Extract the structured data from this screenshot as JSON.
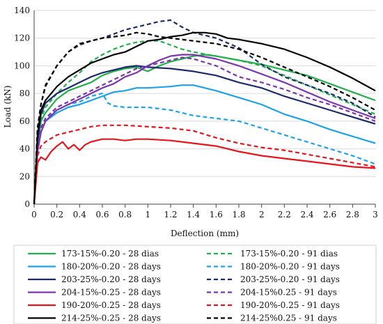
{
  "chart_data": {
    "type": "line",
    "title": "",
    "xlabel": "Deflection (mm)",
    "ylabel": "Load (kN)",
    "xlim": [
      0,
      3
    ],
    "ylim": [
      0,
      140
    ],
    "x_ticks": [
      "0",
      "0.2",
      "0.4",
      "0.6",
      "0.8",
      "1",
      "1.2",
      "1.4",
      "1.6",
      "1.8",
      "2",
      "2.2",
      "2.4",
      "2.6",
      "2.8",
      "3"
    ],
    "y_ticks": [
      "0",
      "20",
      "40",
      "60",
      "80",
      "100",
      "120",
      "140"
    ],
    "grid": "horizontal",
    "legend_position": "bottom",
    "series": [
      {
        "name": "173-15%-0.20 - 28 dias",
        "color": "#22b04b",
        "dash": "solid",
        "points": [
          [
            0,
            0
          ],
          [
            0.03,
            40
          ],
          [
            0.06,
            60
          ],
          [
            0.1,
            66
          ],
          [
            0.2,
            76
          ],
          [
            0.3,
            82
          ],
          [
            0.4,
            85
          ],
          [
            0.5,
            88
          ],
          [
            0.6,
            93
          ],
          [
            0.7,
            96
          ],
          [
            0.8,
            98
          ],
          [
            0.9,
            99
          ],
          [
            1.0,
            96
          ],
          [
            1.1,
            100
          ],
          [
            1.2,
            103
          ],
          [
            1.3,
            105
          ],
          [
            1.4,
            107
          ],
          [
            1.5,
            108
          ],
          [
            1.6,
            107
          ],
          [
            1.8,
            104
          ],
          [
            2.0,
            101
          ],
          [
            2.2,
            97
          ],
          [
            2.4,
            93
          ],
          [
            2.6,
            87
          ],
          [
            2.8,
            81
          ],
          [
            3.0,
            75
          ]
        ]
      },
      {
        "name": "173-15%-0.20 - 91 dias",
        "color": "#22b04b",
        "dash": "dashed",
        "points": [
          [
            0,
            0
          ],
          [
            0.03,
            45
          ],
          [
            0.06,
            62
          ],
          [
            0.1,
            70
          ],
          [
            0.2,
            80
          ],
          [
            0.3,
            88
          ],
          [
            0.4,
            95
          ],
          [
            0.5,
            103
          ],
          [
            0.6,
            108
          ],
          [
            0.7,
            112
          ],
          [
            0.8,
            115
          ],
          [
            0.9,
            117
          ],
          [
            1.0,
            118
          ],
          [
            1.1,
            118
          ],
          [
            1.2,
            115
          ],
          [
            1.3,
            112
          ],
          [
            1.4,
            110
          ],
          [
            1.6,
            107
          ],
          [
            1.8,
            104
          ],
          [
            2.0,
            100
          ],
          [
            2.2,
            93
          ],
          [
            2.4,
            86
          ],
          [
            2.6,
            79
          ],
          [
            2.8,
            72
          ],
          [
            3.0,
            65
          ]
        ]
      },
      {
        "name": "180-20%-0.20 - 28 days",
        "color": "#1aa3e8",
        "dash": "solid",
        "points": [
          [
            0,
            0
          ],
          [
            0.03,
            38
          ],
          [
            0.06,
            52
          ],
          [
            0.1,
            60
          ],
          [
            0.2,
            66
          ],
          [
            0.3,
            70
          ],
          [
            0.4,
            72
          ],
          [
            0.5,
            75
          ],
          [
            0.6,
            78
          ],
          [
            0.7,
            81
          ],
          [
            0.8,
            82
          ],
          [
            0.9,
            84
          ],
          [
            1.0,
            84
          ],
          [
            1.2,
            85
          ],
          [
            1.3,
            86
          ],
          [
            1.4,
            86
          ],
          [
            1.6,
            82
          ],
          [
            1.8,
            77
          ],
          [
            2.0,
            72
          ],
          [
            2.2,
            65
          ],
          [
            2.4,
            60
          ],
          [
            2.6,
            54
          ],
          [
            2.8,
            49
          ],
          [
            3.0,
            44
          ]
        ]
      },
      {
        "name": "180-20%-0.20 - 91 days",
        "color": "#1aa3e8",
        "dash": "dashed",
        "points": [
          [
            0,
            0
          ],
          [
            0.03,
            40
          ],
          [
            0.06,
            55
          ],
          [
            0.1,
            62
          ],
          [
            0.2,
            68
          ],
          [
            0.3,
            72
          ],
          [
            0.4,
            74
          ],
          [
            0.5,
            78
          ],
          [
            0.6,
            80
          ],
          [
            0.65,
            73
          ],
          [
            0.7,
            71
          ],
          [
            0.8,
            70
          ],
          [
            1.0,
            70
          ],
          [
            1.2,
            68
          ],
          [
            1.4,
            64
          ],
          [
            1.6,
            62
          ],
          [
            1.8,
            60
          ],
          [
            2.0,
            55
          ],
          [
            2.2,
            50
          ],
          [
            2.4,
            45
          ],
          [
            2.6,
            40
          ],
          [
            2.8,
            35
          ],
          [
            3.0,
            29
          ]
        ]
      },
      {
        "name": "203-25%-0.20 - 28 days",
        "color": "#1b2a6b",
        "dash": "solid",
        "points": [
          [
            0,
            0
          ],
          [
            0.03,
            45
          ],
          [
            0.06,
            65
          ],
          [
            0.1,
            73
          ],
          [
            0.2,
            80
          ],
          [
            0.3,
            84
          ],
          [
            0.4,
            88
          ],
          [
            0.5,
            92
          ],
          [
            0.6,
            95
          ],
          [
            0.7,
            97
          ],
          [
            0.8,
            99
          ],
          [
            0.9,
            100
          ],
          [
            1.0,
            99
          ],
          [
            1.2,
            98
          ],
          [
            1.4,
            96
          ],
          [
            1.6,
            93
          ],
          [
            1.8,
            88
          ],
          [
            2.0,
            84
          ],
          [
            2.2,
            78
          ],
          [
            2.4,
            73
          ],
          [
            2.6,
            68
          ],
          [
            2.8,
            63
          ],
          [
            3.0,
            58
          ]
        ]
      },
      {
        "name": "203-25%-0.20 - 91 days",
        "color": "#1b2a6b",
        "dash": "dashed",
        "points": [
          [
            0,
            0
          ],
          [
            0.03,
            55
          ],
          [
            0.06,
            72
          ],
          [
            0.1,
            85
          ],
          [
            0.2,
            100
          ],
          [
            0.3,
            110
          ],
          [
            0.4,
            115
          ],
          [
            0.5,
            118
          ],
          [
            0.6,
            120
          ],
          [
            0.7,
            123
          ],
          [
            0.8,
            126
          ],
          [
            0.9,
            128
          ],
          [
            1.0,
            130
          ],
          [
            1.1,
            132
          ],
          [
            1.2,
            133
          ],
          [
            1.3,
            128
          ],
          [
            1.4,
            124
          ],
          [
            1.5,
            122
          ],
          [
            1.6,
            120
          ],
          [
            1.8,
            113
          ],
          [
            2.0,
            101
          ],
          [
            2.2,
            92
          ],
          [
            2.4,
            86
          ],
          [
            2.6,
            80
          ],
          [
            2.8,
            73
          ],
          [
            3.0,
            63
          ]
        ]
      },
      {
        "name": "204-15%-0.25 - 28 days",
        "color": "#7b35b0",
        "dash": "solid",
        "points": [
          [
            0,
            0
          ],
          [
            0.03,
            38
          ],
          [
            0.06,
            52
          ],
          [
            0.1,
            60
          ],
          [
            0.2,
            68
          ],
          [
            0.3,
            72
          ],
          [
            0.4,
            76
          ],
          [
            0.5,
            80
          ],
          [
            0.6,
            84
          ],
          [
            0.7,
            87
          ],
          [
            0.8,
            92
          ],
          [
            0.9,
            95
          ],
          [
            1.0,
            100
          ],
          [
            1.1,
            104
          ],
          [
            1.2,
            107
          ],
          [
            1.3,
            108
          ],
          [
            1.4,
            108
          ],
          [
            1.6,
            105
          ],
          [
            1.8,
            100
          ],
          [
            2.0,
            94
          ],
          [
            2.2,
            88
          ],
          [
            2.4,
            81
          ],
          [
            2.6,
            74
          ],
          [
            2.8,
            68
          ],
          [
            3.0,
            62
          ]
        ]
      },
      {
        "name": "204-15%0.25 - 91 days",
        "color": "#7b35b0",
        "dash": "dashed",
        "points": [
          [
            0,
            0
          ],
          [
            0.03,
            40
          ],
          [
            0.06,
            55
          ],
          [
            0.1,
            62
          ],
          [
            0.2,
            70
          ],
          [
            0.3,
            74
          ],
          [
            0.4,
            78
          ],
          [
            0.5,
            82
          ],
          [
            0.6,
            86
          ],
          [
            0.7,
            90
          ],
          [
            0.8,
            94
          ],
          [
            0.9,
            98
          ],
          [
            1.0,
            100
          ],
          [
            1.2,
            104
          ],
          [
            1.3,
            106
          ],
          [
            1.4,
            105
          ],
          [
            1.6,
            100
          ],
          [
            1.8,
            92
          ],
          [
            2.0,
            88
          ],
          [
            2.2,
            83
          ],
          [
            2.4,
            77
          ],
          [
            2.6,
            72
          ],
          [
            2.8,
            66
          ],
          [
            3.0,
            60
          ]
        ]
      },
      {
        "name": "190-20%-0.25 - 28 days",
        "color": "#e8141b",
        "dash": "solid",
        "points": [
          [
            0,
            0
          ],
          [
            0.03,
            30
          ],
          [
            0.06,
            34
          ],
          [
            0.1,
            32
          ],
          [
            0.15,
            38
          ],
          [
            0.2,
            42
          ],
          [
            0.25,
            45
          ],
          [
            0.3,
            40
          ],
          [
            0.35,
            43
          ],
          [
            0.4,
            39
          ],
          [
            0.45,
            43
          ],
          [
            0.5,
            45
          ],
          [
            0.6,
            47
          ],
          [
            0.7,
            47
          ],
          [
            0.8,
            46
          ],
          [
            0.9,
            47
          ],
          [
            1.0,
            47
          ],
          [
            1.2,
            46
          ],
          [
            1.4,
            44
          ],
          [
            1.6,
            42
          ],
          [
            1.8,
            38
          ],
          [
            2.0,
            35
          ],
          [
            2.2,
            33
          ],
          [
            2.4,
            31
          ],
          [
            2.6,
            29
          ],
          [
            2.8,
            27
          ],
          [
            3.0,
            26
          ]
        ]
      },
      {
        "name": "190-20%-0.25 - 91 days",
        "color": "#e8141b",
        "dash": "dashed",
        "points": [
          [
            0,
            0
          ],
          [
            0.03,
            35
          ],
          [
            0.06,
            42
          ],
          [
            0.1,
            45
          ],
          [
            0.2,
            50
          ],
          [
            0.3,
            52
          ],
          [
            0.4,
            54
          ],
          [
            0.5,
            56
          ],
          [
            0.6,
            57
          ],
          [
            0.8,
            57
          ],
          [
            1.0,
            56
          ],
          [
            1.2,
            55
          ],
          [
            1.4,
            53
          ],
          [
            1.6,
            48
          ],
          [
            1.8,
            44
          ],
          [
            2.0,
            41
          ],
          [
            2.2,
            39
          ],
          [
            2.4,
            36
          ],
          [
            2.6,
            33
          ],
          [
            2.8,
            30
          ],
          [
            3.0,
            27
          ]
        ]
      },
      {
        "name": "214-25%-0.25 - 28 days",
        "color": "#000000",
        "dash": "solid",
        "points": [
          [
            0,
            0
          ],
          [
            0.03,
            50
          ],
          [
            0.06,
            68
          ],
          [
            0.1,
            75
          ],
          [
            0.2,
            85
          ],
          [
            0.3,
            92
          ],
          [
            0.4,
            97
          ],
          [
            0.5,
            102
          ],
          [
            0.6,
            105
          ],
          [
            0.7,
            108
          ],
          [
            0.8,
            110
          ],
          [
            0.9,
            114
          ],
          [
            1.0,
            118
          ],
          [
            1.1,
            119
          ],
          [
            1.2,
            121
          ],
          [
            1.3,
            122
          ],
          [
            1.4,
            124
          ],
          [
            1.5,
            124
          ],
          [
            1.6,
            123
          ],
          [
            1.7,
            120
          ],
          [
            1.8,
            119
          ],
          [
            2.0,
            116
          ],
          [
            2.2,
            112
          ],
          [
            2.4,
            106
          ],
          [
            2.6,
            99
          ],
          [
            2.8,
            91
          ],
          [
            3.0,
            82
          ]
        ]
      },
      {
        "name": "214-25%0.25 - 91 days",
        "color": "#000000",
        "dash": "dashed",
        "points": [
          [
            0,
            0
          ],
          [
            0.03,
            55
          ],
          [
            0.06,
            72
          ],
          [
            0.1,
            86
          ],
          [
            0.2,
            100
          ],
          [
            0.3,
            110
          ],
          [
            0.4,
            116
          ],
          [
            0.5,
            118
          ],
          [
            0.6,
            120
          ],
          [
            0.7,
            121
          ],
          [
            0.8,
            122
          ],
          [
            0.9,
            124
          ],
          [
            1.0,
            123
          ],
          [
            1.1,
            121
          ],
          [
            1.2,
            120
          ],
          [
            1.3,
            119
          ],
          [
            1.4,
            118
          ],
          [
            1.6,
            116
          ],
          [
            1.8,
            112
          ],
          [
            2.0,
            106
          ],
          [
            2.2,
            99
          ],
          [
            2.4,
            92
          ],
          [
            2.6,
            85
          ],
          [
            2.8,
            77
          ],
          [
            3.0,
            68
          ]
        ]
      }
    ]
  }
}
